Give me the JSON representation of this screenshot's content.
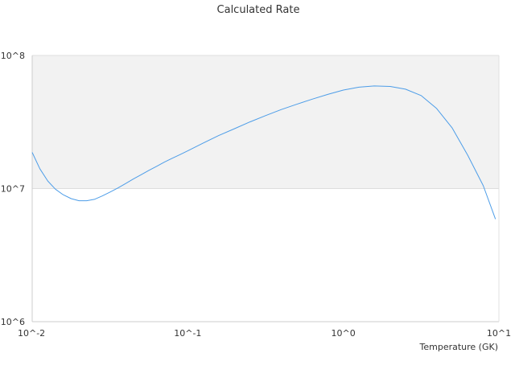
{
  "chart_data": {
    "type": "line",
    "title": "Calculated Rate",
    "xlabel": "Temperature (GK)",
    "ylabel": "",
    "x_scale": "log",
    "y_scale": "log",
    "xlim": [
      0.01,
      10
    ],
    "ylim": [
      1000000,
      100000000
    ],
    "x_tick_labels": [
      "10^-2",
      "10^-1",
      "10^0",
      "10^1"
    ],
    "y_tick_labels": [
      "10^6",
      "10^7",
      "10^8"
    ],
    "grid": true,
    "legend": "none",
    "series": [
      {
        "color": "#4d9de8",
        "x": [
          0.01,
          0.0112,
          0.0126,
          0.0141,
          0.0158,
          0.0178,
          0.02,
          0.0224,
          0.0251,
          0.0282,
          0.0316,
          0.0355,
          0.0398,
          0.0447,
          0.0501,
          0.0562,
          0.0631,
          0.0708,
          0.0794,
          0.0891,
          0.1,
          0.126,
          0.158,
          0.2,
          0.251,
          0.316,
          0.398,
          0.501,
          0.631,
          0.794,
          1.0,
          1.26,
          1.58,
          2.0,
          2.51,
          3.16,
          3.98,
          5.01,
          6.31,
          7.94,
          9.5
        ],
        "y": [
          18700000,
          14100000,
          11400000,
          9900000,
          9000000,
          8400000,
          8100000,
          8100000,
          8300000,
          8800000,
          9400000,
          10100000,
          10900000,
          11800000,
          12700000,
          13700000,
          14700000,
          15800000,
          16900000,
          18000000,
          19200000,
          22000000,
          25000000,
          28200000,
          31700000,
          35300000,
          39200000,
          43000000,
          47000000,
          51000000,
          55000000,
          57800000,
          59000000,
          58500000,
          55800000,
          50000000,
          40000000,
          28500000,
          17800000,
          10500000,
          5900000
        ]
      }
    ]
  }
}
